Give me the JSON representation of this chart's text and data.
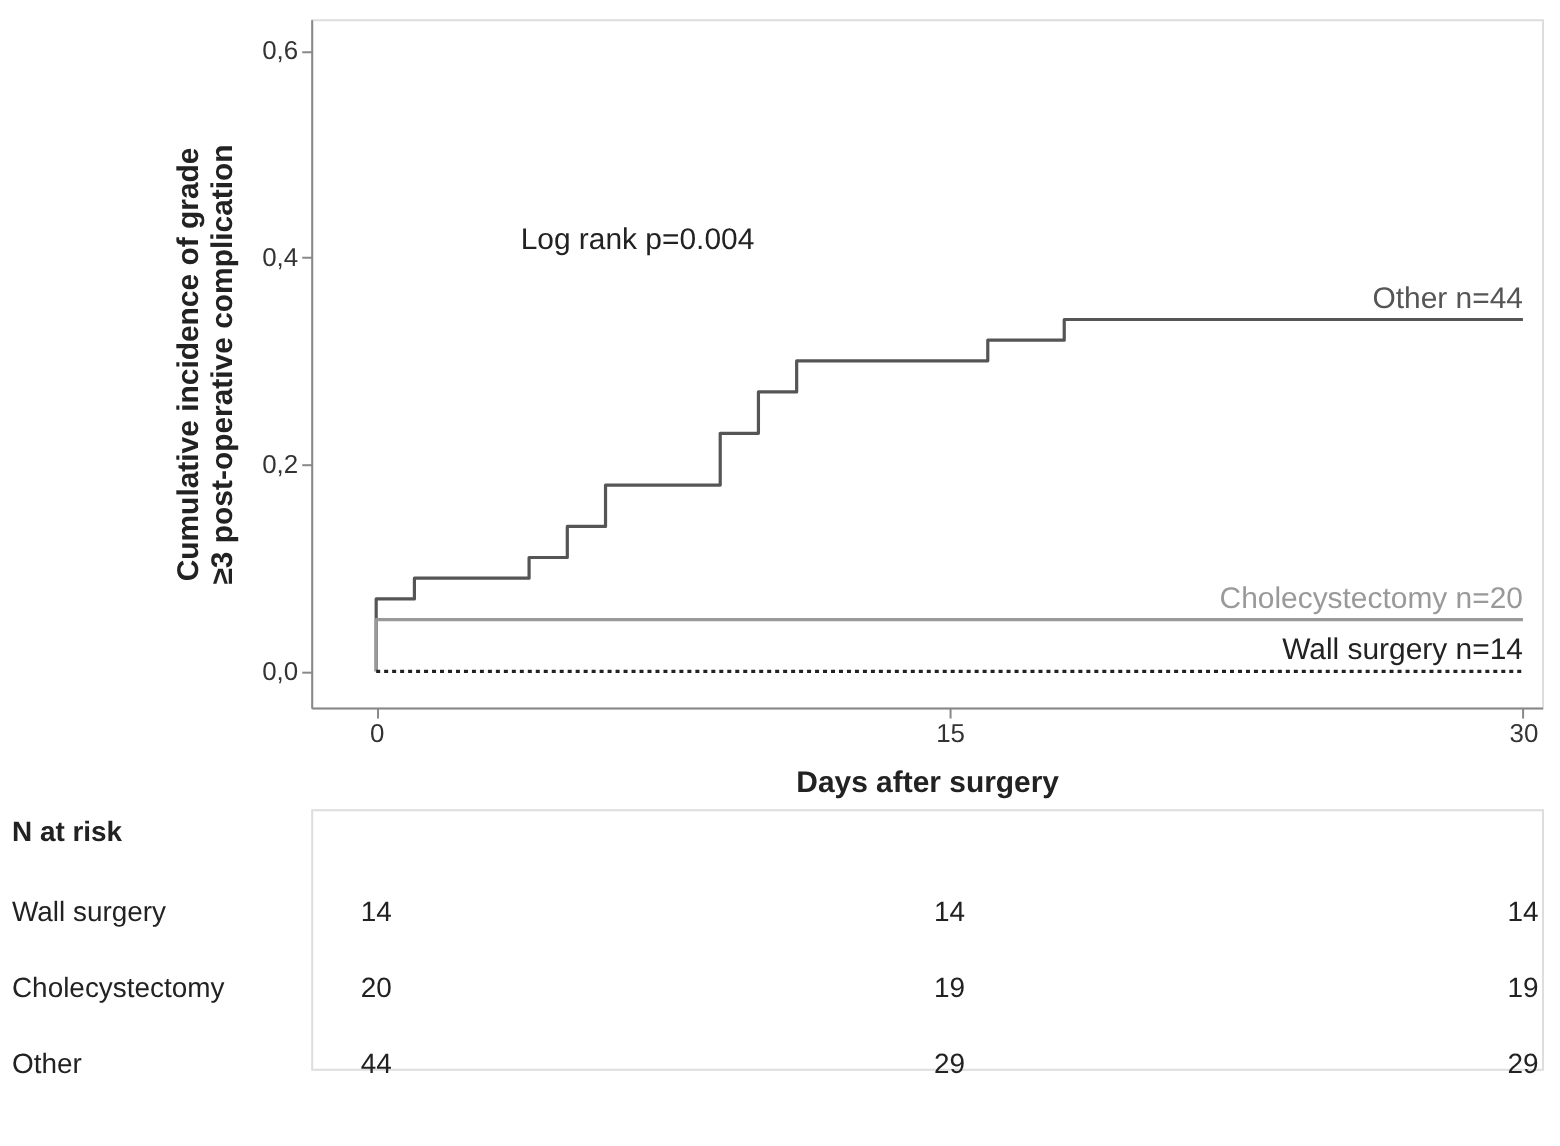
{
  "chart_data": {
    "type": "step",
    "xlabel": "Days after surgery",
    "ylabel": "Cumulative incidence of grade ≥3 post-operative complication",
    "xlim": [
      -1.7,
      30.5
    ],
    "ylim": [
      -0.035,
      0.63
    ],
    "xticks": [
      0,
      15,
      30
    ],
    "yticks": [
      {
        "value": 0,
        "label": "0,0"
      },
      {
        "value": 0.2,
        "label": "0,2"
      },
      {
        "value": 0.4,
        "label": "0,4"
      },
      {
        "value": 0.6,
        "label": "0,6"
      }
    ],
    "grid": false,
    "series": [
      {
        "name": "Other n=44",
        "color": "#555555",
        "line_style": "solid",
        "x": [
          0,
          0,
          1,
          4,
          5,
          6,
          9,
          10,
          11,
          16,
          18,
          30
        ],
        "values": [
          0,
          0.07,
          0.09,
          0.11,
          0.14,
          0.18,
          0.23,
          0.27,
          0.3,
          0.32,
          0.34,
          0.34
        ]
      },
      {
        "name": "Cholecystectomy n=20",
        "color": "#999999",
        "line_style": "solid",
        "x": [
          0,
          0,
          30
        ],
        "values": [
          0,
          0.05,
          0.05
        ]
      },
      {
        "name": "Wall surgery n=14",
        "color": "#222222",
        "line_style": "dotted",
        "x": [
          0,
          30
        ],
        "values": [
          0,
          0
        ]
      }
    ],
    "annotations": [
      "Log rank p=0.004",
      "N at risk",
      "Wall surgery",
      "14",
      "14",
      "14",
      "Cholecystectomy",
      "20",
      "19",
      "19",
      "Other",
      "44",
      "29",
      "29"
    ]
  }
}
